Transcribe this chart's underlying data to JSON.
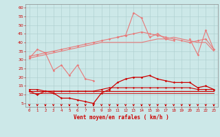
{
  "x": [
    0,
    1,
    2,
    3,
    4,
    5,
    6,
    7,
    8,
    9,
    10,
    11,
    12,
    13,
    14,
    15,
    16,
    17,
    18,
    19,
    20,
    21,
    22,
    23
  ],
  "series": {
    "line1_light": [
      31,
      36,
      34,
      24,
      27,
      21,
      27,
      19,
      18,
      null,
      null,
      43,
      44,
      57,
      54,
      43,
      45,
      42,
      41,
      null,
      42,
      33,
      47,
      36
    ],
    "line2_light_trend1": [
      32,
      33,
      34,
      35,
      36,
      37,
      38,
      39,
      40,
      41,
      42,
      43,
      44,
      45,
      46,
      45,
      44,
      43,
      42,
      41,
      40,
      41,
      42,
      36
    ],
    "line3_light_trend2": [
      31,
      32,
      33,
      34,
      35,
      36,
      37,
      38,
      39,
      40,
      40,
      40,
      40,
      40,
      40,
      41,
      42,
      42,
      43,
      42,
      41,
      40,
      40,
      35
    ],
    "line4_dark_zigzag": [
      12,
      10,
      12,
      11,
      8,
      8,
      7,
      6,
      5,
      11,
      13,
      17,
      19,
      20,
      20,
      21,
      19,
      18,
      17,
      17,
      17,
      14,
      15,
      13
    ],
    "line5_dark_flat1": [
      13,
      13,
      12,
      12,
      12,
      12,
      12,
      12,
      12,
      13,
      14,
      14,
      14,
      14,
      14,
      14,
      14,
      14,
      14,
      14,
      14,
      13,
      13,
      13
    ],
    "line6_dark_flat2": [
      12,
      12,
      12,
      12,
      12,
      12,
      12,
      12,
      12,
      12,
      12,
      12,
      12,
      12,
      12,
      12,
      12,
      12,
      12,
      12,
      12,
      12,
      12,
      12
    ],
    "line7_dark_flat3": [
      11,
      11,
      11,
      11,
      11,
      11,
      11,
      11,
      11,
      11,
      11,
      11,
      11,
      11,
      11,
      11,
      11,
      11,
      11,
      11,
      11,
      11,
      11,
      11
    ]
  },
  "arrows_x": [
    0,
    1,
    2,
    3,
    4,
    5,
    6,
    7,
    8,
    9,
    10,
    11,
    12,
    13,
    14,
    15,
    16,
    17,
    18,
    19,
    20,
    21,
    22,
    23
  ],
  "ylim": [
    3,
    62
  ],
  "yticks": [
    5,
    10,
    15,
    20,
    25,
    30,
    35,
    40,
    45,
    50,
    55,
    60
  ],
  "xlabel": "Vent moyen/en rafales ( km/h )",
  "bg_color": "#cce8e8",
  "grid_color": "#aacccc",
  "light_red": "#e87878",
  "dark_red": "#cc0000",
  "arrow_color": "#cc0000",
  "xlabel_color": "#cc0000",
  "tick_color": "#cc0000",
  "spine_color": "#888888"
}
